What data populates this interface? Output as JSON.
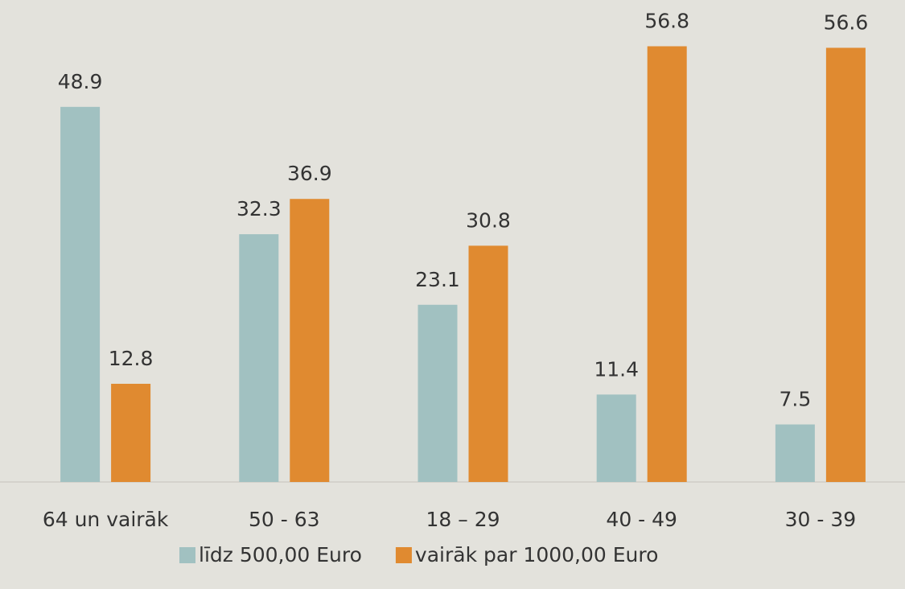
{
  "chart_data": {
    "type": "bar",
    "categories": [
      "64 un vairāk",
      "50 - 63",
      "18 – 29",
      "40 - 49",
      "30 - 39"
    ],
    "series": [
      {
        "name": "līdz 500,00 Euro",
        "color": "#a1c1c1",
        "values": [
          48.9,
          32.3,
          23.1,
          11.4,
          7.5
        ]
      },
      {
        "name": "vairāk par 1000,00 Euro",
        "color": "#e08a30",
        "values": [
          12.8,
          36.9,
          30.8,
          56.8,
          56.6
        ]
      }
    ],
    "ylim": [
      0,
      60
    ],
    "legend": "bottom"
  }
}
